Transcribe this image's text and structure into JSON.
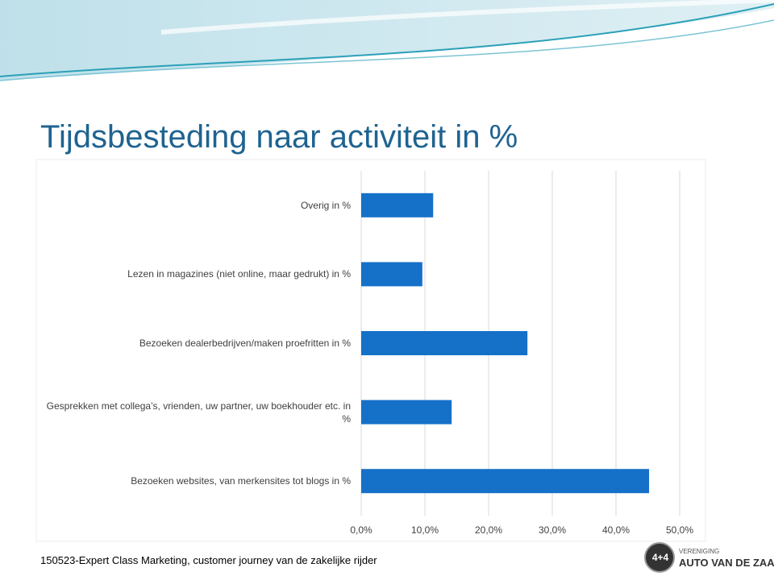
{
  "title": "Tijdsbesteding naar activiteit in %",
  "footer": "150523-Expert Class Marketing, customer journey van de zakelijke rijder",
  "logo": {
    "top": "VERENIGING",
    "name": "AUTO VAN DE ZAAK"
  },
  "chart_data": {
    "type": "bar",
    "orientation": "horizontal",
    "categories": [
      "Overig in %",
      "Lezen in magazines (niet online, maar gedrukt) in %",
      "Bezoeken dealerbedrijven/maken proefritten in %",
      "Gesprekken met collega’s, vrienden, uw partner, uw boekhouder etc. in %",
      "Bezoeken websites, van merkensites tot blogs in %"
    ],
    "values": [
      11.3,
      9.6,
      26.1,
      14.2,
      45.2
    ],
    "color": "#1570c8",
    "xlim": [
      0,
      50
    ],
    "xticks": [
      {
        "value": 0,
        "label": "0,0%"
      },
      {
        "value": 10,
        "label": "10,0%"
      },
      {
        "value": 20,
        "label": "20,0%"
      },
      {
        "value": 30,
        "label": "30,0%"
      },
      {
        "value": 40,
        "label": "40,0%"
      },
      {
        "value": 50,
        "label": "50,0%"
      }
    ],
    "grid": true
  }
}
